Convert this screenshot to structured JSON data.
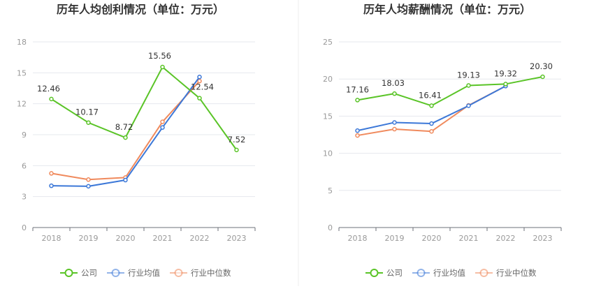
{
  "colors": {
    "company": "#5ac427",
    "industry_avg": "#3c78d8",
    "industry_median": "#f08a5d"
  },
  "chart_data": [
    {
      "type": "line",
      "title": "历年人均创利情况（单位：万元）",
      "categories": [
        "2018",
        "2019",
        "2020",
        "2021",
        "2022",
        "2023"
      ],
      "ylim": [
        0,
        18
      ],
      "yticks": [
        0,
        3,
        6,
        9,
        12,
        15,
        18
      ],
      "series": [
        {
          "name": "公司",
          "key": "company",
          "values": [
            12.46,
            10.17,
            8.72,
            15.56,
            12.54,
            7.52
          ],
          "labels": [
            "12.46",
            "10.17",
            "8.72",
            "15.56",
            "12.54",
            "7.52"
          ]
        },
        {
          "name": "行业均值",
          "key": "industry_avg",
          "values": [
            4.05,
            4.0,
            4.6,
            9.7,
            14.6,
            null
          ]
        },
        {
          "name": "行业中位数",
          "key": "industry_median",
          "values": [
            5.25,
            4.65,
            4.85,
            10.25,
            14.2,
            null
          ]
        }
      ]
    },
    {
      "type": "line",
      "title": "历年人均薪酬情况（单位：万元）",
      "categories": [
        "2018",
        "2019",
        "2020",
        "2021",
        "2022",
        "2023"
      ],
      "ylim": [
        0,
        25
      ],
      "yticks": [
        0,
        5,
        10,
        15,
        20,
        25
      ],
      "series": [
        {
          "name": "公司",
          "key": "company",
          "values": [
            17.16,
            18.03,
            16.41,
            19.13,
            19.32,
            20.3
          ],
          "labels": [
            "17.16",
            "18.03",
            "16.41",
            "19.13",
            "19.32",
            "20.30"
          ]
        },
        {
          "name": "行业均值",
          "key": "industry_avg",
          "values": [
            13.05,
            14.15,
            14.0,
            16.4,
            19.05,
            null
          ]
        },
        {
          "name": "行业中位数",
          "key": "industry_median",
          "values": [
            12.4,
            13.25,
            12.95,
            16.45,
            19.05,
            null
          ]
        }
      ]
    }
  ],
  "legend": [
    {
      "key": "company",
      "label": "公司"
    },
    {
      "key": "industry_avg",
      "label": "行业均值"
    },
    {
      "key": "industry_median",
      "label": "行业中位数"
    }
  ]
}
